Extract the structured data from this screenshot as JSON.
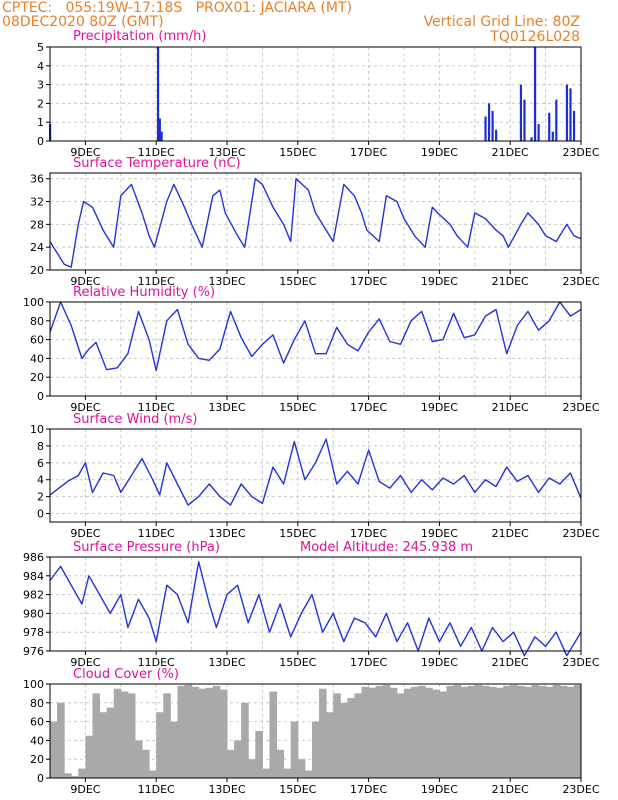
{
  "header": {
    "line1": "CPTEC:   055:19W-17:18S   PROX01: JACIARA (MT)",
    "line2_left": "08DEC2020 80Z (GMT)",
    "line2_right": "Vertical Grid Line: 80Z",
    "line3_right": "TQ0126L028"
  },
  "colors": {
    "line": "#2233dd",
    "bars": "#1a2ed8",
    "cloud": "#a9a9a9",
    "title": "#e0119a",
    "header": "#e8802a"
  },
  "x_ticks": [
    "9DEC",
    "11DEC",
    "13DEC",
    "15DEC",
    "17DEC",
    "19DEC",
    "21DEC",
    "23DEC"
  ],
  "chart_data": [
    {
      "type": "bar",
      "title": "Precipitation (mm/h)",
      "ylim": [
        0,
        5
      ],
      "yticks": [
        "0",
        "1",
        "2",
        "3",
        "4",
        "5"
      ],
      "x": [
        0.0,
        3.05,
        3.1,
        3.15,
        12.3,
        12.4,
        12.5,
        12.6,
        13.3,
        13.4,
        13.6,
        13.7,
        13.8,
        14.1,
        14.2,
        14.3,
        14.6,
        14.7,
        14.8
      ],
      "values": [
        0.9,
        5.0,
        1.2,
        0.5,
        1.3,
        2.0,
        1.6,
        0.6,
        3.0,
        2.2,
        0.2,
        5.0,
        0.9,
        1.5,
        0.5,
        2.2,
        3.0,
        2.8,
        1.6
      ]
    },
    {
      "type": "line",
      "title": "Surface Temperature (nC)",
      "ylim": [
        20,
        37
      ],
      "yticks": [
        "20",
        "24",
        "28",
        "32",
        "36"
      ],
      "x": [
        0.0,
        0.4,
        0.6,
        0.8,
        0.95,
        1.2,
        1.5,
        1.8,
        2.0,
        2.3,
        2.6,
        2.8,
        2.95,
        3.3,
        3.5,
        3.8,
        4.0,
        4.3,
        4.6,
        4.8,
        4.95,
        5.3,
        5.5,
        5.8,
        6.0,
        6.3,
        6.6,
        6.8,
        6.95,
        7.3,
        7.5,
        7.8,
        8.0,
        8.3,
        8.6,
        8.8,
        8.95,
        9.3,
        9.5,
        9.8,
        10.0,
        10.3,
        10.6,
        10.8,
        10.95,
        11.3,
        11.5,
        11.8,
        12.0,
        12.3,
        12.6,
        12.8,
        12.95,
        13.3,
        13.5,
        13.8,
        14.0,
        14.3,
        14.6,
        14.8,
        15.0
      ],
      "values": [
        25,
        21,
        20.5,
        28,
        32,
        31,
        27,
        24,
        33,
        35,
        30,
        26,
        24,
        32,
        35,
        31,
        28,
        24,
        33,
        34,
        30,
        26,
        24,
        36,
        35,
        31,
        28,
        25,
        36,
        34,
        30,
        27,
        25,
        35,
        33,
        30,
        27,
        25,
        33,
        32,
        29,
        26,
        24,
        31,
        30,
        28,
        26,
        24,
        30,
        29,
        27,
        26,
        24,
        28,
        30,
        28,
        26,
        25,
        28,
        26,
        25.5
      ]
    },
    {
      "type": "line",
      "title": "Relative Humidity (%)",
      "ylim": [
        0,
        100
      ],
      "yticks": [
        "0",
        "20",
        "40",
        "60",
        "80",
        "100"
      ],
      "x": [
        0.0,
        0.3,
        0.6,
        0.9,
        1.1,
        1.3,
        1.6,
        1.9,
        2.2,
        2.5,
        2.8,
        3.0,
        3.3,
        3.6,
        3.9,
        4.2,
        4.5,
        4.8,
        5.1,
        5.4,
        5.7,
        6.0,
        6.3,
        6.6,
        6.9,
        7.2,
        7.5,
        7.8,
        8.1,
        8.4,
        8.7,
        9.0,
        9.3,
        9.6,
        9.9,
        10.2,
        10.5,
        10.8,
        11.1,
        11.4,
        11.7,
        12.0,
        12.3,
        12.6,
        12.9,
        13.2,
        13.5,
        13.8,
        14.1,
        14.4,
        14.7,
        15.0
      ],
      "values": [
        68,
        100,
        75,
        40,
        50,
        57,
        28,
        30,
        45,
        90,
        60,
        27,
        80,
        92,
        55,
        40,
        38,
        50,
        90,
        62,
        42,
        55,
        65,
        35,
        60,
        80,
        45,
        45,
        73,
        55,
        48,
        68,
        82,
        58,
        55,
        80,
        90,
        58,
        60,
        88,
        62,
        65,
        85,
        92,
        45,
        75,
        90,
        70,
        80,
        100,
        85,
        92
      ]
    },
    {
      "type": "line",
      "title": "Surface Wind (m/s)",
      "ylim": [
        -1,
        10
      ],
      "yticks": [
        "0",
        "2",
        "4",
        "6",
        "8",
        "10"
      ],
      "x": [
        0.0,
        0.5,
        0.8,
        1.0,
        1.2,
        1.5,
        1.8,
        2.0,
        2.3,
        2.6,
        2.9,
        3.1,
        3.3,
        3.6,
        3.9,
        4.2,
        4.5,
        4.8,
        5.1,
        5.4,
        5.7,
        6.0,
        6.3,
        6.6,
        6.9,
        7.2,
        7.5,
        7.8,
        8.1,
        8.4,
        8.7,
        9.0,
        9.3,
        9.6,
        9.9,
        10.2,
        10.5,
        10.8,
        11.1,
        11.4,
        11.7,
        12.0,
        12.3,
        12.6,
        12.9,
        13.2,
        13.5,
        13.8,
        14.1,
        14.4,
        14.7,
        15.0
      ],
      "values": [
        2.2,
        3.8,
        4.5,
        6.0,
        2.5,
        4.8,
        4.5,
        2.5,
        4.5,
        6.5,
        4.0,
        2.2,
        6.0,
        3.5,
        1.0,
        2.0,
        3.5,
        2.0,
        1.0,
        3.5,
        2.0,
        1.2,
        5.5,
        3.5,
        8.5,
        4.0,
        6.0,
        8.8,
        3.5,
        5.0,
        3.5,
        7.5,
        3.8,
        3.0,
        4.5,
        2.5,
        4.0,
        2.8,
        4.2,
        3.5,
        4.5,
        2.5,
        4.0,
        3.2,
        5.5,
        3.8,
        4.5,
        2.5,
        4.2,
        3.5,
        4.8,
        1.8
      ]
    },
    {
      "type": "line",
      "title": "Surface Pressure (hPa)",
      "annotation": "Model Altitude: 245.938 m",
      "ylim": [
        976,
        986
      ],
      "yticks": [
        "976",
        "978",
        "980",
        "982",
        "984",
        "986"
      ],
      "x": [
        0.0,
        0.3,
        0.6,
        0.9,
        1.1,
        1.4,
        1.7,
        2.0,
        2.2,
        2.5,
        2.8,
        3.0,
        3.3,
        3.6,
        3.9,
        4.2,
        4.5,
        4.7,
        5.0,
        5.3,
        5.6,
        5.9,
        6.2,
        6.5,
        6.8,
        7.1,
        7.4,
        7.7,
        8.0,
        8.3,
        8.6,
        8.9,
        9.2,
        9.5,
        9.8,
        10.1,
        10.4,
        10.7,
        11.0,
        11.3,
        11.6,
        11.9,
        12.2,
        12.5,
        12.8,
        13.1,
        13.4,
        13.7,
        14.0,
        14.3,
        14.6,
        15.0
      ],
      "values": [
        983.5,
        985,
        983,
        981,
        984,
        982,
        980,
        982,
        978.5,
        981.5,
        979.5,
        977,
        983,
        982,
        979,
        985.5,
        981,
        978.5,
        982,
        983,
        979,
        982,
        978,
        981,
        977.5,
        980,
        982,
        978,
        980,
        977,
        979.5,
        979,
        977.5,
        980,
        977,
        979,
        976,
        979.5,
        977,
        979,
        976.5,
        978.5,
        976,
        978.5,
        977,
        978,
        975.5,
        977.5,
        976.5,
        978,
        975.5,
        978
      ]
    },
    {
      "type": "area",
      "title": "Cloud Cover (%)",
      "ylim": [
        0,
        100
      ],
      "yticks": [
        "0",
        "20",
        "40",
        "60",
        "80",
        "100"
      ],
      "x": [
        0.0,
        0.2,
        0.4,
        0.6,
        0.8,
        1.0,
        1.2,
        1.4,
        1.6,
        1.8,
        2.0,
        2.2,
        2.4,
        2.6,
        2.8,
        3.0,
        3.2,
        3.4,
        3.6,
        3.8,
        4.0,
        4.2,
        4.4,
        4.6,
        4.8,
        5.0,
        5.2,
        5.4,
        5.6,
        5.8,
        6.0,
        6.2,
        6.4,
        6.6,
        6.8,
        7.0,
        7.2,
        7.4,
        7.6,
        7.8,
        8.0,
        8.2,
        8.4,
        8.6,
        8.8,
        9.0,
        9.2,
        9.4,
        9.6,
        9.8,
        10.0,
        10.2,
        10.4,
        10.6,
        10.8,
        11.0,
        11.2,
        11.4,
        11.6,
        11.8,
        12.0,
        12.2,
        12.4,
        12.6,
        12.8,
        13.0,
        13.2,
        13.4,
        13.6,
        13.8,
        14.0,
        14.2,
        14.4,
        14.6,
        14.8,
        15.0
      ],
      "values": [
        60,
        80,
        5,
        2,
        10,
        45,
        90,
        70,
        75,
        95,
        92,
        90,
        40,
        30,
        8,
        70,
        90,
        60,
        98,
        99,
        97,
        95,
        96,
        98,
        94,
        30,
        40,
        80,
        20,
        50,
        10,
        92,
        30,
        10,
        60,
        20,
        8,
        60,
        95,
        70,
        90,
        80,
        85,
        90,
        97,
        96,
        98,
        99,
        96,
        90,
        95,
        97,
        98,
        96,
        94,
        92,
        98,
        99,
        97,
        98,
        99,
        98,
        97,
        96,
        98,
        99,
        98,
        97,
        99,
        98,
        97,
        99,
        98,
        97,
        99,
        98
      ]
    }
  ]
}
